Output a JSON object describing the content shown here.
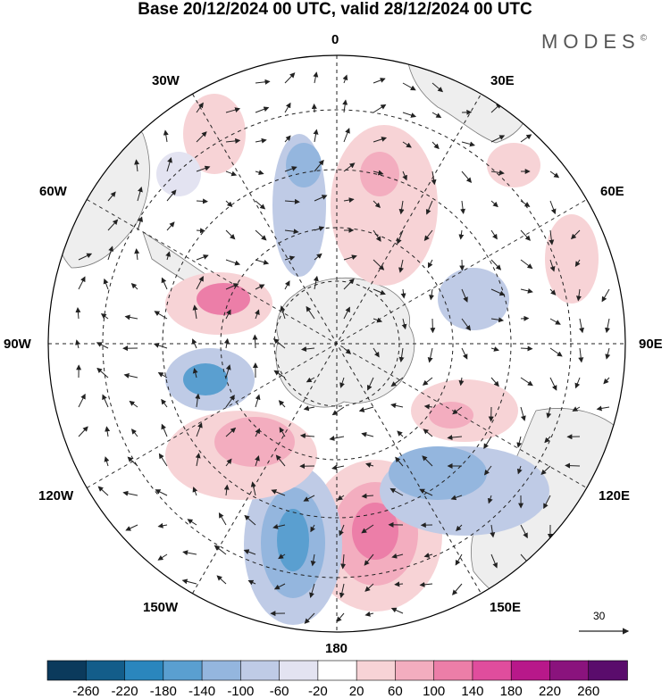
{
  "title": "Base 20/12/2024 00 UTC, valid 28/12/2024 00 UTC",
  "brand": "MODES",
  "brand_mark": "©",
  "longitude_labels": {
    "lon_0": "0",
    "lon_30e": "30E",
    "lon_60e": "60E",
    "lon_90e": "90E",
    "lon_120e": "120E",
    "lon_150e": "150E",
    "lon_180": "180",
    "lon_150w": "150W",
    "lon_120w": "120W",
    "lon_90w": "90W",
    "lon_60w": "60W",
    "lon_30w": "30W"
  },
  "reference_vector": "30",
  "colorbar": {
    "labels": [
      "-260",
      "-220",
      "-180",
      "-140",
      "-100",
      "-60",
      "-20",
      "20",
      "60",
      "100",
      "140",
      "180",
      "220",
      "260"
    ],
    "colors": [
      "#0b3a5c",
      "#135d8a",
      "#2a86bd",
      "#5a9fd0",
      "#94b6de",
      "#bfcbe6",
      "#e3e3f1",
      "#ffffff",
      "#f7d3d6",
      "#f3adbf",
      "#ec7ea8",
      "#e04d9d",
      "#b8188a",
      "#8a137d",
      "#5a0c6c"
    ]
  },
  "colors": {
    "land": "#eeeeee",
    "coast": "#7a7a7a",
    "grid": "#222222"
  }
}
